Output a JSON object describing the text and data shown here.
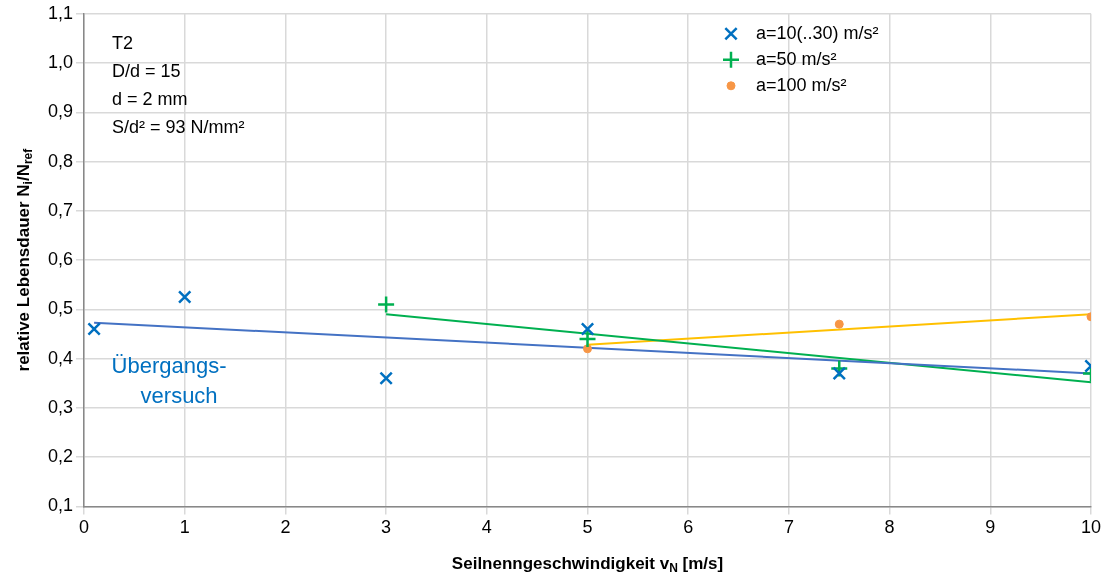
{
  "chart_data": {
    "type": "scatter",
    "xlabel": "Seilnenngeschwindigkeit v$_{N}$ [m/s]",
    "ylabel": "relative Lebensdauer N$_{i}$/N$_{ref}$",
    "xlim": [
      0,
      10
    ],
    "xticks": [
      0,
      1,
      2,
      3,
      4,
      5,
      6,
      7,
      8,
      9,
      10
    ],
    "ylim": [
      0.1,
      1.1
    ],
    "yticks": [
      {
        "value": 0.1,
        "label": "0,1"
      },
      {
        "value": 0.2,
        "label": "0,2"
      },
      {
        "value": 0.3,
        "label": "0,3"
      },
      {
        "value": 0.4,
        "label": "0,4"
      },
      {
        "value": 0.5,
        "label": "0,5"
      },
      {
        "value": 0.6,
        "label": "0,6"
      },
      {
        "value": 0.7,
        "label": "0,7"
      },
      {
        "value": 0.8,
        "label": "0,8"
      },
      {
        "value": 0.9,
        "label": "0,9"
      },
      {
        "value": 1.0,
        "label": "1,0"
      },
      {
        "value": 1.1,
        "label": "1,1"
      }
    ],
    "grid": true,
    "legend": "top right",
    "series": [
      {
        "name": "a=10(..30) m/s²",
        "color": "#0070c0",
        "marker": "x",
        "x": [
          0.1,
          1,
          3,
          5,
          7.5,
          10
        ],
        "values": [
          0.46,
          0.525,
          0.36,
          0.46,
          0.37,
          0.385
        ]
      },
      {
        "name": "a=50 m/s²",
        "color": "#00b050",
        "marker": "cross",
        "x": [
          3,
          5,
          7.5,
          10
        ],
        "values": [
          0.51,
          0.44,
          0.38,
          0.37
        ]
      },
      {
        "name": "a=100 m/s²",
        "color": "#f79646",
        "marker": "circle",
        "x": [
          5,
          7.5,
          10
        ],
        "values": [
          0.42,
          0.47,
          0.485
        ]
      },
      {
        "type": "line",
        "color": "#4472c4",
        "marker": "none",
        "x": [
          0.1,
          10
        ],
        "values": [
          0.473,
          0.37
        ]
      },
      {
        "type": "line",
        "color": "#00b050",
        "marker": "none",
        "x": [
          3,
          10
        ],
        "values": [
          0.49,
          0.352
        ]
      },
      {
        "type": "line",
        "color": "#ffc000",
        "marker": "none",
        "x": [
          5,
          10
        ],
        "values": [
          0.428,
          0.49
        ]
      }
    ],
    "annotations": [
      "T2",
      "D/d = 15",
      "d = 2 mm",
      "S/d² = 93 N/mm²",
      {
        "text": "Übergangs-\nversuch",
        "x": 0.1,
        "y": 0.46
      }
    ]
  }
}
